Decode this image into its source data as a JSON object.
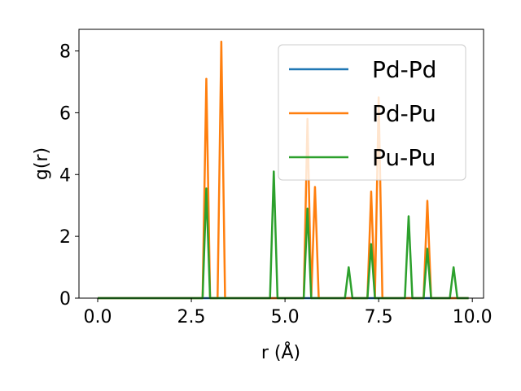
{
  "chart_data": {
    "type": "line",
    "xlabel": "r (Å)",
    "ylabel": "g(r)",
    "xlim": [
      -0.5,
      10.3
    ],
    "ylim": [
      0,
      8.7
    ],
    "xticks": [
      "0.0",
      "2.5",
      "5.0",
      "7.5",
      "10.0"
    ],
    "yticks": [
      "0",
      "2",
      "4",
      "6",
      "8"
    ],
    "legend_position": "top-right",
    "grid": false,
    "series": [
      {
        "name": "Pd-Pd",
        "color": "#1f77b4",
        "x": [
          0,
          9.9
        ],
        "y": [
          0,
          0
        ]
      },
      {
        "name": "Pd-Pu",
        "color": "#ff7f0e",
        "x": [
          0,
          2.8,
          2.9,
          3.0,
          3.2,
          3.3,
          3.4,
          5.5,
          5.6,
          5.7,
          5.8,
          5.9,
          7.2,
          7.3,
          7.4,
          7.5,
          7.6,
          8.7,
          8.8,
          8.9,
          9.9
        ],
        "y": [
          0,
          0,
          7.1,
          0,
          0,
          8.3,
          0,
          0,
          5.8,
          0,
          3.6,
          0,
          0,
          3.45,
          0,
          6.5,
          0,
          0,
          3.15,
          0,
          0
        ]
      },
      {
        "name": "Pu-Pu",
        "color": "#2ca02c",
        "x": [
          0,
          2.8,
          2.9,
          3.0,
          4.6,
          4.7,
          4.8,
          5.5,
          5.6,
          5.7,
          6.6,
          6.7,
          6.8,
          7.2,
          7.3,
          7.4,
          8.2,
          8.3,
          8.4,
          8.7,
          8.8,
          8.9,
          9.4,
          9.5,
          9.6,
          9.9
        ],
        "y": [
          0,
          0,
          3.55,
          0,
          0,
          4.1,
          0,
          0,
          2.9,
          0,
          0,
          1.0,
          0,
          0,
          1.75,
          0,
          0,
          2.65,
          0,
          0,
          1.6,
          0,
          0,
          1.0,
          0,
          0
        ]
      }
    ]
  }
}
